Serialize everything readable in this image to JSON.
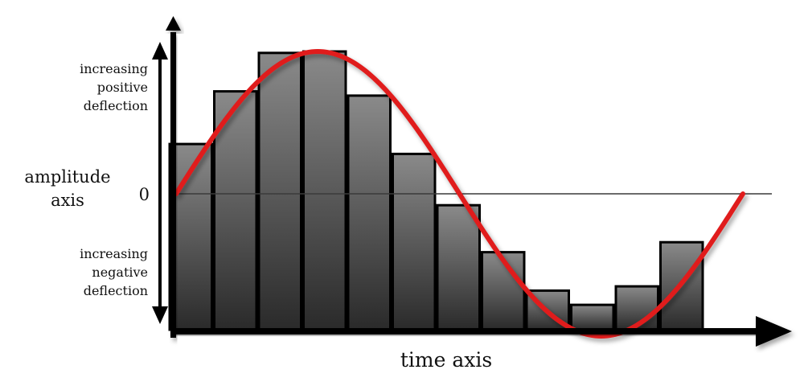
{
  "labels": {
    "positive": [
      "increasing",
      "positive",
      "deflection"
    ],
    "amplitude": [
      "amplitude",
      "axis"
    ],
    "zero": "0",
    "negative": [
      "increasing",
      "negative",
      "deflection"
    ],
    "time": "time axis"
  },
  "colors": {
    "bar_top": "#8a8a8a",
    "bar_bottom": "#2a2a2a",
    "bar_stroke": "#000000",
    "sine": "#e01b1b",
    "axis": "#000000",
    "baseline": "#3a3a3a"
  },
  "chart_data": {
    "type": "bar",
    "bars": [
      0.35,
      0.72,
      0.99,
      1.0,
      0.69,
      0.28,
      -0.08,
      -0.41,
      -0.68,
      -0.78,
      -0.65,
      -0.34
    ],
    "curve": "sine",
    "cycles": 1
  }
}
